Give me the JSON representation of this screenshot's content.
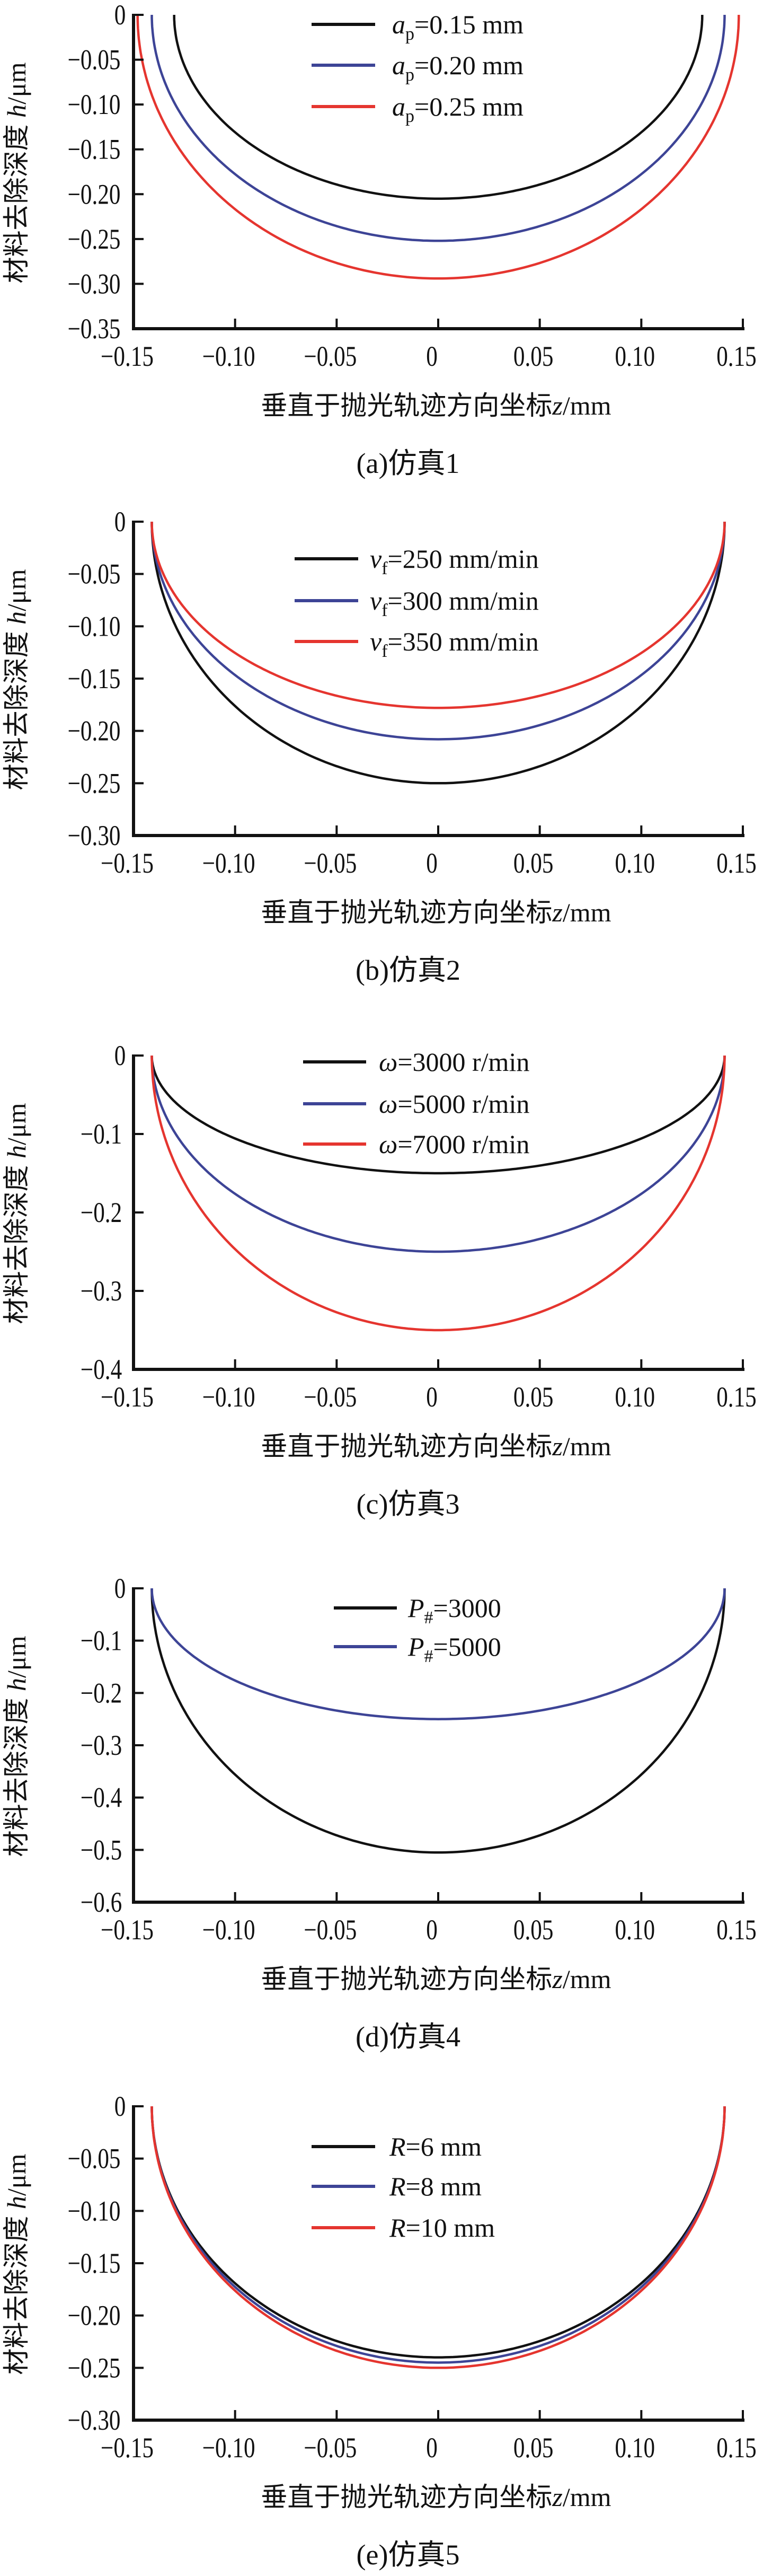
{
  "chart_data": [
    {
      "type": "line",
      "caption": "(a)仿真1",
      "xlabel": {
        "text": "垂直于抛光轨迹方向坐标",
        "var": "z",
        "unit": "/mm"
      },
      "ylabel": {
        "text": "材料去除深度 ",
        "var": "h",
        "unit": "/μm"
      },
      "xlim": [
        -0.15,
        0.15
      ],
      "ylim": [
        -0.35,
        0
      ],
      "xtick_values": [
        -0.15,
        -0.1,
        -0.05,
        0,
        0.05,
        0.1,
        0.15
      ],
      "xticks": [
        "−0.15",
        "−0.10",
        "−0.05",
        "0",
        "0.05",
        "0.10",
        "0.15"
      ],
      "ytick_values": [
        0,
        -0.05,
        -0.1,
        -0.15,
        -0.2,
        -0.25,
        -0.3,
        -0.35
      ],
      "yticks": [
        "0",
        "−0.05",
        "−0.10",
        "−0.15",
        "−0.20",
        "−0.25",
        "−0.30",
        "−0.35"
      ],
      "legend_position": "top-center",
      "series": [
        {
          "label": {
            "sym": "a",
            "sub": "p",
            "rest": "=0.15 mm"
          },
          "color": "#111111",
          "half_width": 0.13,
          "min_depth": -0.205
        },
        {
          "label": {
            "sym": "a",
            "sub": "p",
            "rest": "=0.20 mm"
          },
          "color": "#3d4496",
          "half_width": 0.141,
          "min_depth": -0.252
        },
        {
          "label": {
            "sym": "a",
            "sub": "p",
            "rest": "=0.25 mm"
          },
          "color": "#e5352f",
          "half_width": 0.148,
          "min_depth": -0.294
        }
      ]
    },
    {
      "type": "line",
      "caption": "(b)仿真2",
      "xlabel": {
        "text": "垂直于抛光轨迹方向坐标",
        "var": "z",
        "unit": "/mm"
      },
      "ylabel": {
        "text": "材料去除深度 ",
        "var": "h",
        "unit": "/μm"
      },
      "xlim": [
        -0.15,
        0.15
      ],
      "ylim": [
        -0.3,
        0
      ],
      "xtick_values": [
        -0.15,
        -0.1,
        -0.05,
        0,
        0.05,
        0.1,
        0.15
      ],
      "xticks": [
        "−0.15",
        "−0.10",
        "−0.05",
        "0",
        "0.05",
        "0.10",
        "0.15"
      ],
      "ytick_values": [
        0,
        -0.05,
        -0.1,
        -0.15,
        -0.2,
        -0.25,
        -0.3
      ],
      "yticks": [
        "0",
        "−0.05",
        "−0.10",
        "−0.15",
        "−0.20",
        "−0.25",
        "−0.30"
      ],
      "legend_position": "top-center",
      "series": [
        {
          "label": {
            "sym": "v",
            "sub": "f",
            "rest": "=250 mm/min"
          },
          "color": "#111111",
          "half_width": 0.141,
          "min_depth": -0.25
        },
        {
          "label": {
            "sym": "v",
            "sub": "f",
            "rest": "=300 mm/min"
          },
          "color": "#3d4496",
          "half_width": 0.141,
          "min_depth": -0.208
        },
        {
          "label": {
            "sym": "v",
            "sub": "f",
            "rest": "=350 mm/min"
          },
          "color": "#e5352f",
          "half_width": 0.141,
          "min_depth": -0.178
        }
      ]
    },
    {
      "type": "line",
      "caption": "(c)仿真3",
      "xlabel": {
        "text": "垂直于抛光轨迹方向坐标",
        "var": "z",
        "unit": "/mm"
      },
      "ylabel": {
        "text": "材料去除深度 ",
        "var": "h",
        "unit": "/μm"
      },
      "xlim": [
        -0.15,
        0.15
      ],
      "ylim": [
        -0.4,
        0
      ],
      "xtick_values": [
        -0.15,
        -0.1,
        -0.05,
        0,
        0.05,
        0.1,
        0.15
      ],
      "xticks": [
        "−0.15",
        "−0.10",
        "−0.05",
        "0",
        "0.05",
        "0.10",
        "0.15"
      ],
      "ytick_values": [
        0,
        -0.1,
        -0.2,
        -0.3,
        -0.4
      ],
      "yticks": [
        "0",
        "−0.1",
        "−0.2",
        "−0.3",
        "−0.4"
      ],
      "legend_position": "top-center",
      "series": [
        {
          "label": {
            "sym": "ω",
            "rest": "=3000 r/min"
          },
          "color": "#111111",
          "half_width": 0.141,
          "min_depth": -0.15
        },
        {
          "label": {
            "sym": "ω",
            "rest": "=5000 r/min"
          },
          "color": "#3d4496",
          "half_width": 0.141,
          "min_depth": -0.25
        },
        {
          "label": {
            "sym": "ω",
            "rest": "=7000 r/min"
          },
          "color": "#e5352f",
          "half_width": 0.141,
          "min_depth": -0.35
        }
      ]
    },
    {
      "type": "line",
      "caption": "(d)仿真4",
      "xlabel": {
        "text": "垂直于抛光轨迹方向坐标",
        "var": "z",
        "unit": "/mm"
      },
      "ylabel": {
        "text": "材料去除深度 ",
        "var": "h",
        "unit": "/μm"
      },
      "xlim": [
        -0.15,
        0.15
      ],
      "ylim": [
        -0.6,
        0
      ],
      "xtick_values": [
        -0.15,
        -0.1,
        -0.05,
        0,
        0.05,
        0.1,
        0.15
      ],
      "xticks": [
        "−0.15",
        "−0.10",
        "−0.05",
        "0",
        "0.05",
        "0.10",
        "0.15"
      ],
      "ytick_values": [
        0,
        -0.1,
        -0.2,
        -0.3,
        -0.4,
        -0.5,
        -0.6
      ],
      "yticks": [
        "0",
        "−0.1",
        "−0.2",
        "−0.3",
        "−0.4",
        "−0.5",
        "−0.6"
      ],
      "legend_position": "top-center",
      "series": [
        {
          "label": {
            "sym": "P",
            "sub": "#",
            "rest": "=3000"
          },
          "color": "#111111",
          "half_width": 0.141,
          "min_depth": -0.505
        },
        {
          "label": {
            "sym": "P",
            "sub": "#",
            "rest": "=5000"
          },
          "color": "#3d4496",
          "half_width": 0.141,
          "min_depth": -0.25
        }
      ]
    },
    {
      "type": "line",
      "caption": "(e)仿真5",
      "xlabel": {
        "text": "垂直于抛光轨迹方向坐标",
        "var": "z",
        "unit": "/mm"
      },
      "ylabel": {
        "text": "材料去除深度 ",
        "var": "h",
        "unit": "/μm"
      },
      "xlim": [
        -0.15,
        0.15
      ],
      "ylim": [
        -0.3,
        0
      ],
      "xtick_values": [
        -0.15,
        -0.1,
        -0.05,
        0,
        0.05,
        0.1,
        0.15
      ],
      "xticks": [
        "−0.15",
        "−0.10",
        "−0.05",
        "0",
        "0.05",
        "0.10",
        "0.15"
      ],
      "ytick_values": [
        0,
        -0.05,
        -0.1,
        -0.15,
        -0.2,
        -0.25,
        -0.3
      ],
      "yticks": [
        "0",
        "−0.05",
        "−0.10",
        "−0.15",
        "−0.20",
        "−0.25",
        "−0.30"
      ],
      "legend_position": "top-center",
      "series": [
        {
          "label": {
            "sym": "R",
            "rest": "=6 mm"
          },
          "color": "#111111",
          "half_width": 0.141,
          "min_depth": -0.24
        },
        {
          "label": {
            "sym": "R",
            "rest": "=8 mm"
          },
          "color": "#3d4496",
          "half_width": 0.141,
          "min_depth": -0.245
        },
        {
          "label": {
            "sym": "R",
            "rest": "=10 mm"
          },
          "color": "#e5352f",
          "half_width": 0.141,
          "min_depth": -0.25
        }
      ]
    }
  ]
}
